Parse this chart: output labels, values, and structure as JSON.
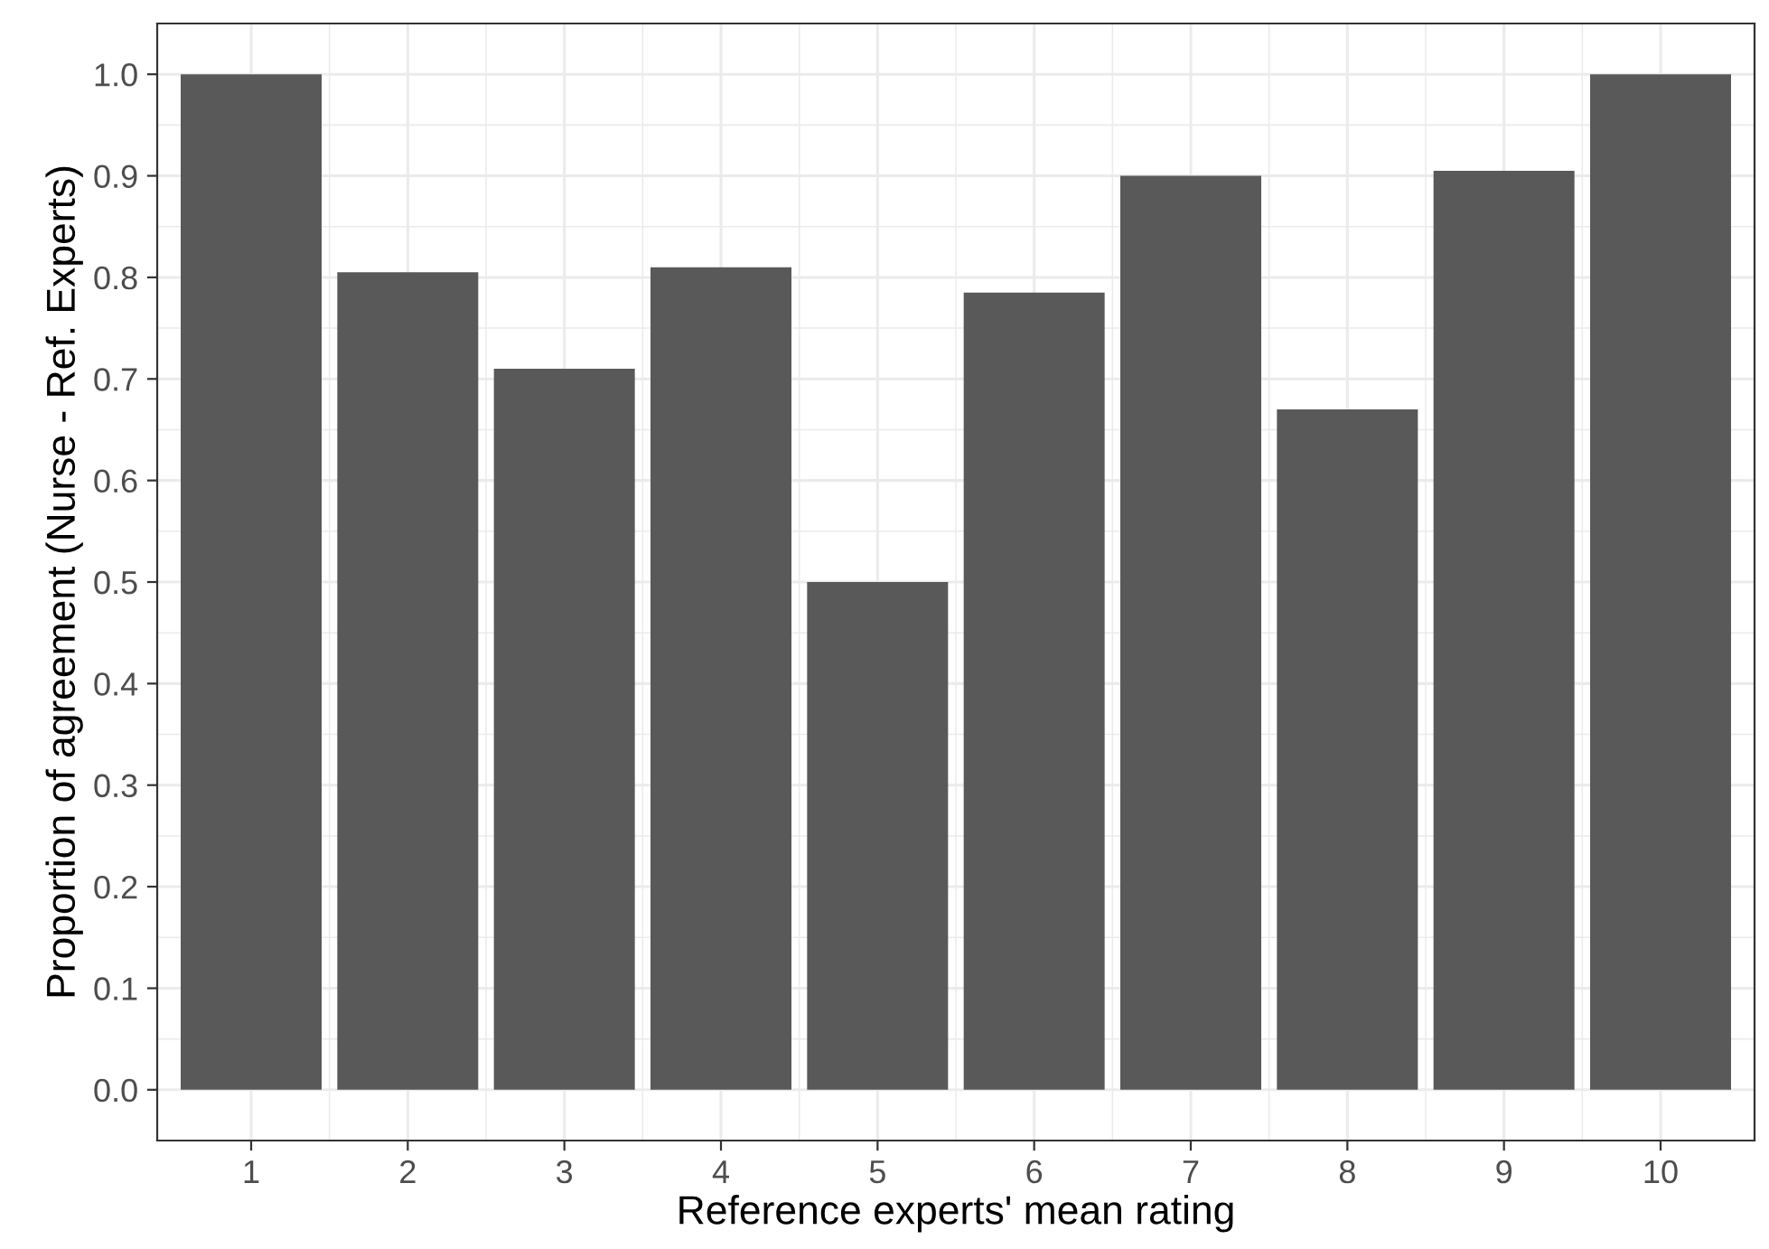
{
  "chart_data": {
    "type": "bar",
    "xlabel": "Reference experts' mean rating",
    "ylabel": "Proportion of agreement (Nurse - Ref. Experts)",
    "categories": [
      "1",
      "2",
      "3",
      "4",
      "5",
      "6",
      "7",
      "8",
      "9",
      "10"
    ],
    "values": [
      1.0,
      0.805,
      0.71,
      0.81,
      0.5,
      0.785,
      0.9,
      0.67,
      0.905,
      1.0
    ],
    "color": "#595959",
    "ylim": [
      -0.05,
      1.05
    ],
    "yticks": [
      {
        "value": 0,
        "label": "0.0"
      },
      0.1,
      0.2,
      0.3,
      0.4,
      0.5,
      0.6,
      0.7,
      0.8,
      0.9,
      {
        "value": 1,
        "label": "1.0"
      }
    ],
    "grid": true
  }
}
